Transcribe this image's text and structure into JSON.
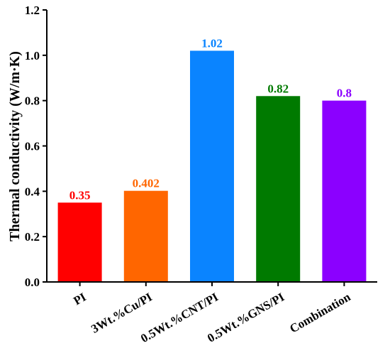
{
  "chart_data": {
    "type": "bar",
    "categories": [
      "PI",
      "3Wt.%Cu/PI",
      "0.5Wt.%CNT/PI",
      "0.5Wt.%GNS/PI",
      "Combination"
    ],
    "values": [
      0.35,
      0.402,
      1.02,
      0.82,
      0.8
    ],
    "data_labels": [
      "0.35",
      "0.402",
      "1.02",
      "0.82",
      "0.8"
    ],
    "colors": [
      "#ff0000",
      "#ff6600",
      "#0a84ff",
      "#007a00",
      "#8b00ff"
    ],
    "title": "",
    "xlabel": "",
    "ylabel": "Thermal conductivity (W/m·K)",
    "ylim": [
      0,
      1.2
    ],
    "yticks": [
      "0.0",
      "0.2",
      "0.4",
      "0.6",
      "0.8",
      "1.0",
      "1.2"
    ],
    "grid": false,
    "legend": "none"
  }
}
